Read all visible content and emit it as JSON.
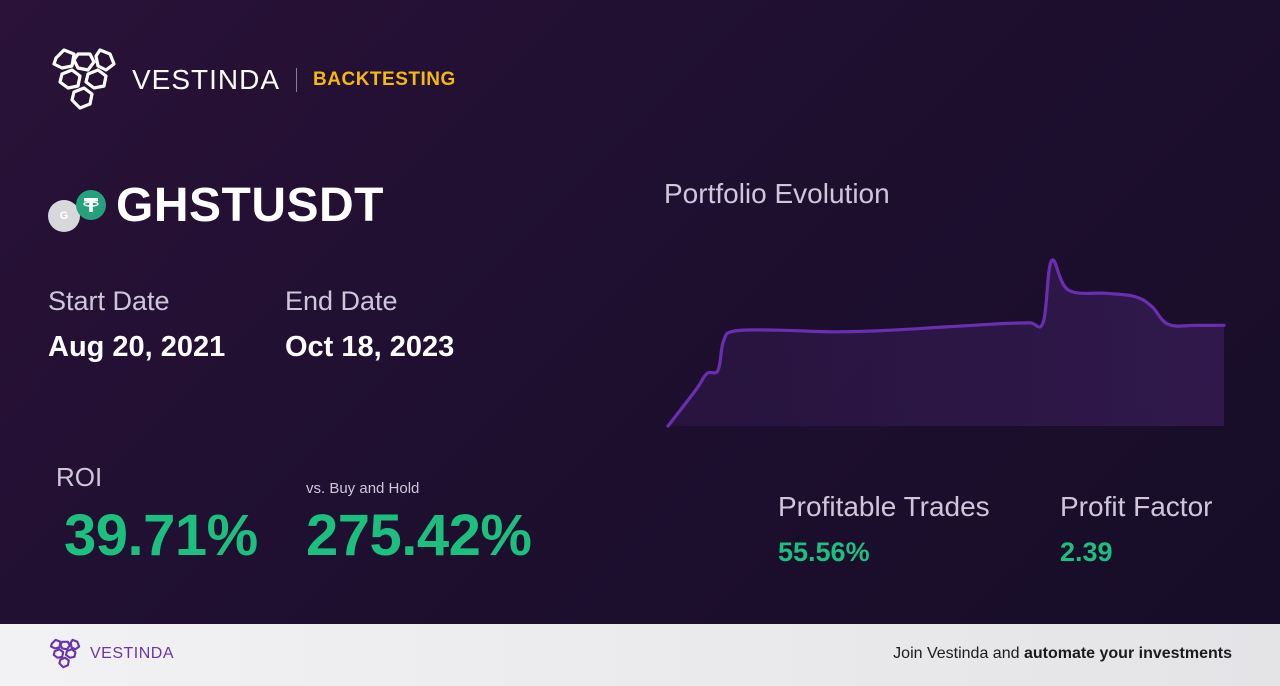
{
  "brand": {
    "name": "VESTINDA",
    "tag": "BACKTESTING"
  },
  "asset": {
    "pair": "GHSTUSDT",
    "base_icon_letter": "G",
    "base_icon": "ghst-coin-icon",
    "quote_icon": "tether-icon"
  },
  "dates": {
    "start_label": "Start Date",
    "start_value": "Aug 20, 2021",
    "end_label": "End Date",
    "end_value": "Oct 18, 2023"
  },
  "roi": {
    "label": "ROI",
    "value": "39.71%"
  },
  "buy_hold": {
    "label": "vs. Buy and Hold",
    "value": "275.42%"
  },
  "chart": {
    "title": "Portfolio Evolution"
  },
  "chart_data": {
    "type": "area",
    "title": "Portfolio Evolution",
    "xlabel": "",
    "ylabel": "",
    "x": [
      0,
      0.05,
      0.07,
      0.09,
      0.1,
      0.12,
      0.2,
      0.3,
      0.4,
      0.5,
      0.6,
      0.65,
      0.675,
      0.69,
      0.72,
      0.79,
      0.84,
      0.87,
      0.9,
      0.95,
      1.0
    ],
    "y": [
      0,
      22,
      32,
      34,
      52,
      58,
      58.5,
      57.5,
      58.5,
      60.5,
      62.5,
      63,
      63.5,
      101,
      83,
      81,
      79,
      73,
      62,
      61.5,
      61.5
    ],
    "ylim": [
      0,
      105
    ],
    "grid": false,
    "color": "#6a2fb0"
  },
  "stats": {
    "profitable_label": "Profitable Trades",
    "profitable_value": "55.56%",
    "factor_label": "Profit Factor",
    "factor_value": "2.39"
  },
  "footer": {
    "brand": "VESTINDA",
    "cta_prefix": "Join Vestinda and ",
    "cta_bold": "automate your investments"
  },
  "colors": {
    "accent_green": "#1dbf7f",
    "brand_yellow": "#f2b90f",
    "brand_purple": "#6a35a8"
  }
}
